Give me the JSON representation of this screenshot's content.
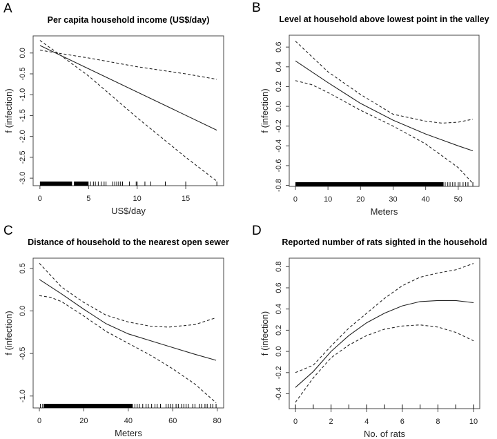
{
  "chart_data": [
    {
      "type": "line",
      "panel_label": "A",
      "title": "Per capita household income (US$/day)",
      "xlabel": "US$/day",
      "ylabel": "f (infection)",
      "xlim": [
        -0.7,
        18.9
      ],
      "ylim": [
        -3.18,
        0.41
      ],
      "xticks": [
        0,
        5,
        10,
        15
      ],
      "yticks": [
        0.0,
        -0.5,
        -1.0,
        -1.5,
        -2.0,
        -2.5,
        -3.0
      ],
      "series": [
        {
          "style": "solid",
          "points": [
            [
              0,
              0.18
            ],
            [
              18.2,
              -1.85
            ]
          ]
        },
        {
          "style": "dashed",
          "points": [
            [
              0,
              0.07
            ],
            [
              1.8,
              0
            ],
            [
              5,
              -0.12
            ],
            [
              10,
              -0.33
            ],
            [
              15,
              -0.5
            ],
            [
              18.2,
              -0.63
            ]
          ]
        },
        {
          "style": "dashed",
          "points": [
            [
              0,
              0.3
            ],
            [
              1.8,
              0
            ],
            [
              5,
              -0.55
            ],
            [
              10,
              -1.55
            ],
            [
              15,
              -2.5
            ],
            [
              18.2,
              -3.07
            ]
          ]
        }
      ],
      "rug": {
        "dense": [
          [
            0,
            3.3
          ],
          [
            3.5,
            5.0
          ]
        ],
        "values": [
          5.2,
          5.5,
          5.7,
          6.0,
          6.3,
          6.6,
          6.8,
          7.5,
          7.7,
          7.9,
          8.1,
          8.3,
          8.5,
          9.2,
          9.9,
          10.0,
          10.8,
          11.4,
          12.9,
          15.0,
          18.2
        ]
      }
    },
    {
      "type": "line",
      "panel_label": "B",
      "title": "Level at household above lowest point in the valley",
      "xlabel": "Meters",
      "ylabel": "f (infection)",
      "xlim": [
        -1.9,
        56.4
      ],
      "ylim": [
        -0.81,
        0.72
      ],
      "xticks": [
        0,
        10,
        20,
        30,
        40,
        50
      ],
      "yticks": [
        0.6,
        0.4,
        0.2,
        0.0,
        -0.2,
        -0.4,
        -0.6,
        -0.8
      ],
      "series": [
        {
          "style": "solid",
          "points": [
            [
              0,
              0.46
            ],
            [
              10,
              0.24
            ],
            [
              20,
              0.03
            ],
            [
              30,
              -0.14
            ],
            [
              40,
              -0.28
            ],
            [
              50,
              -0.4
            ],
            [
              54.5,
              -0.45
            ]
          ]
        },
        {
          "style": "dashed",
          "points": [
            [
              0,
              0.66
            ],
            [
              10,
              0.35
            ],
            [
              20,
              0.12
            ],
            [
              30,
              -0.08
            ],
            [
              40,
              -0.15
            ],
            [
              45,
              -0.17
            ],
            [
              50,
              -0.16
            ],
            [
              54.5,
              -0.13
            ]
          ]
        },
        {
          "style": "dashed",
          "points": [
            [
              0,
              0.26
            ],
            [
              5,
              0.22
            ],
            [
              10,
              0.14
            ],
            [
              20,
              -0.04
            ],
            [
              30,
              -0.2
            ],
            [
              40,
              -0.38
            ],
            [
              50,
              -0.62
            ],
            [
              54.5,
              -0.78
            ]
          ]
        }
      ],
      "rug": {
        "dense": [
          [
            0,
            45.5
          ]
        ],
        "values": [
          46,
          46.8,
          47.5,
          48.3,
          49,
          50,
          50.5,
          51.5,
          52.3,
          53,
          54.5
        ]
      }
    },
    {
      "type": "line",
      "panel_label": "C",
      "title": "Distance of household to the nearest open sewer",
      "xlabel": "Meters",
      "ylabel": "f (infection)",
      "xlim": [
        -2.8,
        82.9
      ],
      "ylim": [
        -1.14,
        0.62
      ],
      "xticks": [
        0,
        20,
        40,
        60,
        80
      ],
      "yticks": [
        0.5,
        0.0,
        -0.5,
        -1.0
      ],
      "series": [
        {
          "style": "solid",
          "points": [
            [
              0,
              0.37
            ],
            [
              10,
              0.2
            ],
            [
              20,
              0.02
            ],
            [
              30,
              -0.15
            ],
            [
              40,
              -0.27
            ],
            [
              50,
              -0.35
            ],
            [
              60,
              -0.43
            ],
            [
              70,
              -0.51
            ],
            [
              79.5,
              -0.58
            ]
          ]
        },
        {
          "style": "dashed",
          "points": [
            [
              0,
              0.56
            ],
            [
              10,
              0.28
            ],
            [
              20,
              0.1
            ],
            [
              30,
              -0.05
            ],
            [
              40,
              -0.13
            ],
            [
              50,
              -0.18
            ],
            [
              58,
              -0.19
            ],
            [
              70,
              -0.16
            ],
            [
              79.5,
              -0.08
            ]
          ]
        },
        {
          "style": "dashed",
          "points": [
            [
              0,
              0.18
            ],
            [
              5,
              0.16
            ],
            [
              10,
              0.11
            ],
            [
              20,
              -0.06
            ],
            [
              30,
              -0.24
            ],
            [
              40,
              -0.38
            ],
            [
              50,
              -0.52
            ],
            [
              60,
              -0.68
            ],
            [
              70,
              -0.86
            ],
            [
              79.5,
              -1.08
            ]
          ]
        }
      ],
      "rug": {
        "dense": [
          [
            2,
            42
          ]
        ],
        "values": [
          0.5,
          1.5,
          43,
          44,
          45,
          46.5,
          48,
          49,
          50.5,
          52,
          53,
          54.5,
          57,
          58,
          59,
          60,
          61.5,
          62.5,
          64,
          65,
          66,
          67,
          69,
          70,
          72,
          73,
          74.5,
          75.5,
          77,
          78,
          79.5
        ]
      }
    },
    {
      "type": "line",
      "panel_label": "D",
      "title": "Reported number of rats  sighted in the household",
      "xlabel": "No. of rats",
      "ylabel": "f (infection)",
      "xlim": [
        -0.35,
        10.35
      ],
      "ylim": [
        -0.54,
        0.88
      ],
      "xticks": [
        0,
        2,
        4,
        6,
        8,
        10
      ],
      "yticks": [
        0.8,
        0.6,
        0.4,
        0.2,
        0.0,
        -0.2,
        -0.4
      ],
      "series": [
        {
          "style": "solid",
          "points": [
            [
              0,
              -0.34
            ],
            [
              1,
              -0.19
            ],
            [
              2,
              0.0
            ],
            [
              3,
              0.15
            ],
            [
              4,
              0.27
            ],
            [
              5,
              0.36
            ],
            [
              6,
              0.43
            ],
            [
              7,
              0.47
            ],
            [
              8,
              0.48
            ],
            [
              9,
              0.48
            ],
            [
              10,
              0.46
            ]
          ]
        },
        {
          "style": "dashed",
          "points": [
            [
              0,
              -0.2
            ],
            [
              1,
              -0.13
            ],
            [
              2,
              0.05
            ],
            [
              3,
              0.22
            ],
            [
              4,
              0.36
            ],
            [
              5,
              0.5
            ],
            [
              6,
              0.62
            ],
            [
              7,
              0.7
            ],
            [
              8,
              0.74
            ],
            [
              9,
              0.77
            ],
            [
              10,
              0.83
            ]
          ]
        },
        {
          "style": "dashed",
          "points": [
            [
              0,
              -0.48
            ],
            [
              1,
              -0.25
            ],
            [
              2,
              -0.06
            ],
            [
              3,
              0.06
            ],
            [
              4,
              0.15
            ],
            [
              5,
              0.21
            ],
            [
              6,
              0.24
            ],
            [
              7,
              0.25
            ],
            [
              8,
              0.23
            ],
            [
              9,
              0.18
            ],
            [
              10,
              0.1
            ]
          ]
        }
      ],
      "rug": {
        "dense": [],
        "values": [
          0,
          1,
          2,
          3,
          4,
          5,
          6,
          7,
          8,
          9,
          10
        ]
      }
    }
  ]
}
